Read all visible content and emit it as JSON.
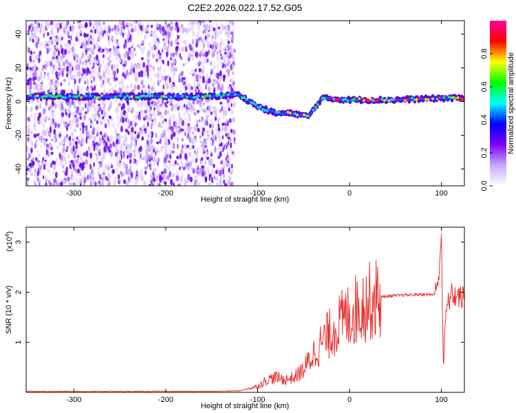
{
  "title": "C2E2.2026.022.17.52.G05",
  "chart_data": [
    {
      "type": "heatmap",
      "xlabel": "Height of straight line (km)",
      "ylabel": "Frequency (Hz)",
      "xlim": [
        -352,
        125
      ],
      "ylim": [
        -50,
        48
      ],
      "xticks": [
        -300,
        -200,
        -100,
        0,
        100
      ],
      "yticks": [
        -40,
        -20,
        0,
        20,
        40
      ],
      "colorbar": {
        "label": "Normalized spectral amplitude",
        "range": [
          0,
          1
        ],
        "ticks": [
          "0.0",
          "0.2",
          "0.4",
          "0.6",
          "0.8"
        ],
        "colors": [
          "#ffffff",
          "#c8a8ff",
          "#8000ff",
          "#0000ff",
          "#00ffff",
          "#00ff00",
          "#ffff00",
          "#ff0000",
          "#ff00a0"
        ]
      },
      "features": {
        "noise_region_x": [
          -352,
          -125
        ],
        "main_signal_y": 2,
        "signal_track": [
          [
            -350,
            3
          ],
          [
            -300,
            3
          ],
          [
            -250,
            3
          ],
          [
            -200,
            3
          ],
          [
            -150,
            3
          ],
          [
            -120,
            4
          ],
          [
            -100,
            -3
          ],
          [
            -80,
            -7
          ],
          [
            -60,
            -7
          ],
          [
            -45,
            -9
          ],
          [
            -30,
            2
          ],
          [
            0,
            1
          ],
          [
            50,
            1
          ],
          [
            100,
            2
          ],
          [
            125,
            2
          ]
        ]
      }
    },
    {
      "type": "line",
      "xlabel": "Height of straight line (km)",
      "ylabel": "SNR (10 * v/v)",
      "yscale_label": "(x10",
      "yscale_exp": "4",
      "xlim": [
        -352,
        125
      ],
      "ylim": [
        0,
        3.3
      ],
      "xticks": [
        -300,
        -200,
        -100,
        0,
        100
      ],
      "yticks": [
        1,
        2,
        3
      ],
      "series": [
        {
          "color": "#e83030",
          "x": [
            -352,
            -300,
            -250,
            -200,
            -150,
            -120,
            -100,
            -90,
            -80,
            -70,
            -60,
            -50,
            -40,
            -30,
            -20,
            -10,
            0,
            10,
            20,
            30,
            40,
            60,
            80,
            90,
            95,
            98,
            100,
            102,
            105,
            110,
            125
          ],
          "y": [
            0.02,
            0.02,
            0.02,
            0.02,
            0.02,
            0.03,
            0.12,
            0.25,
            0.3,
            0.25,
            0.3,
            0.45,
            0.75,
            1.0,
            1.2,
            1.4,
            1.55,
            1.7,
            1.8,
            1.88,
            1.92,
            1.94,
            1.96,
            1.95,
            2.0,
            2.6,
            3.2,
            0.5,
            1.6,
            1.95,
            1.88
          ]
        }
      ]
    }
  ]
}
